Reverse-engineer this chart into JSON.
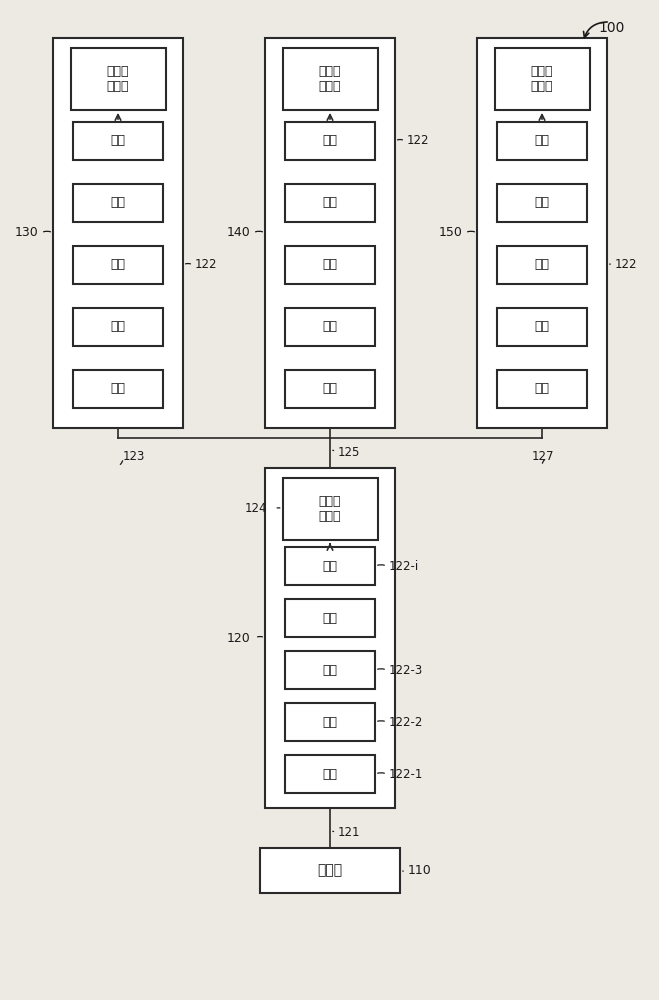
{
  "bg_color": "#ede9e3",
  "box_fill": "#ffffff",
  "box_edge": "#2a2a2a",
  "text_color": "#1a1a1a",
  "line_color": "#2a2a2a",
  "demux_text": "解多路\n复用器",
  "pixel_text": "像素",
  "controller_text": "控制器",
  "lbl_100": "100",
  "lbl_110": "110",
  "lbl_120": "120",
  "lbl_121": "121",
  "lbl_122": "122",
  "lbl_122i": "122-i",
  "lbl_122_1": "122-1",
  "lbl_122_2": "122-2",
  "lbl_122_3": "122-3",
  "lbl_123": "123",
  "lbl_124": "124",
  "lbl_125": "125",
  "lbl_127": "127",
  "lbl_130": "130",
  "lbl_140": "140",
  "lbl_150": "150"
}
